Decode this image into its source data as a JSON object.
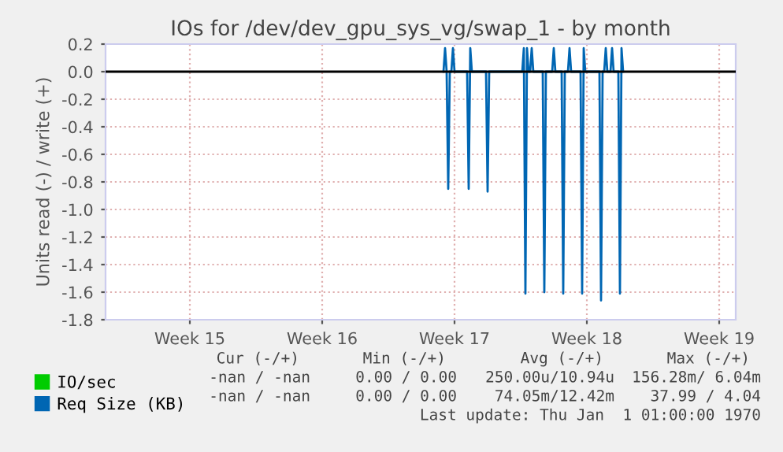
{
  "chart_data": {
    "type": "line",
    "title": "IOs for /dev/dev_gpu_sys_vg/swap_1 - by month",
    "ylabel": "Units read (-) / write (+)",
    "categories": [
      null,
      null,
      null,
      null,
      null,
      null,
      null,
      null,
      null,
      null,
      null,
      null,
      null,
      null,
      null,
      null,
      null,
      null,
      null,
      null,
      null,
      null,
      null,
      null,
      null,
      null,
      null,
      null,
      null,
      null,
      null,
      null,
      null,
      null,
      null,
      null,
      null,
      null,
      null,
      null,
      null,
      null,
      null,
      null,
      null,
      null,
      null,
      null,
      null,
      null,
      null,
      null,
      null,
      "Week 15",
      null,
      null,
      null,
      null,
      null,
      null,
      null,
      null,
      null,
      null,
      null,
      null,
      null,
      null,
      null,
      null,
      null,
      null,
      null,
      null,
      null,
      null,
      null,
      null,
      null,
      null,
      null,
      null,
      null,
      null,
      null,
      null,
      null,
      null,
      null,
      null,
      null,
      null,
      null,
      null,
      null,
      null,
      null,
      null,
      null,
      null,
      null,
      null,
      null,
      null,
      null,
      null,
      null,
      null,
      null,
      null,
      null,
      null,
      null,
      null,
      null,
      null,
      null,
      null,
      null,
      null,
      null,
      null,
      null,
      null,
      null,
      null,
      null,
      null,
      null,
      null,
      null,
      null,
      null,
      null,
      null,
      null,
      null,
      "Week 16",
      null,
      null,
      null,
      null,
      null,
      null,
      null,
      null,
      null,
      null,
      null,
      null,
      null,
      null,
      null,
      null,
      null,
      null,
      null,
      null,
      null,
      null,
      null,
      null,
      null,
      null,
      null,
      null,
      null,
      null,
      null,
      null,
      null,
      null,
      null,
      null,
      null,
      null,
      null,
      null,
      null,
      null,
      null,
      null,
      null,
      null,
      null,
      null,
      null,
      null,
      null,
      null,
      null,
      null,
      null,
      null,
      null,
      null,
      null,
      null,
      null,
      null,
      null,
      null,
      null,
      null,
      null,
      null,
      null,
      null,
      null,
      null,
      null,
      null,
      null,
      null,
      null,
      null,
      null,
      null,
      null,
      null,
      null,
      "Week 17",
      null,
      null,
      null,
      null,
      null,
      null,
      null,
      null,
      null,
      null,
      null,
      null,
      null,
      null,
      null,
      null,
      null,
      null,
      null,
      null,
      null,
      null,
      null,
      null,
      null,
      null,
      null,
      null,
      null,
      null,
      null,
      null,
      null,
      null,
      null,
      null,
      null,
      null,
      null,
      null,
      null,
      null,
      null,
      null,
      null,
      null,
      null,
      null,
      null,
      null,
      null,
      null,
      null,
      null,
      null,
      null,
      null,
      null,
      null,
      null,
      null,
      null,
      null,
      null,
      null,
      null,
      null,
      null,
      null,
      null,
      null,
      null,
      null,
      null,
      null,
      null,
      null,
      null,
      null,
      null,
      null,
      null,
      null,
      "Week 18",
      null,
      null,
      null,
      null,
      null,
      null,
      null,
      null,
      null,
      null,
      null,
      null,
      null,
      null,
      null,
      null,
      null,
      null,
      null,
      null,
      null,
      null,
      null,
      null,
      null,
      null,
      null,
      null,
      null,
      null,
      null,
      null,
      null,
      null,
      null,
      null,
      null,
      null,
      null,
      null,
      null,
      null,
      null,
      null,
      null,
      null,
      null,
      null,
      null,
      null,
      null,
      null,
      null,
      null,
      null,
      null,
      null,
      null,
      null,
      null,
      null,
      null,
      null,
      null,
      null,
      null,
      null,
      null,
      null,
      null,
      null,
      null,
      null,
      null,
      null,
      null,
      null,
      null,
      null,
      null,
      null,
      null,
      null,
      "Week 19",
      null,
      null,
      null,
      null,
      null,
      null,
      null,
      null,
      null,
      null
    ],
    "ylim": [
      -1.8,
      0.2
    ],
    "yticks": [
      0.2,
      {
        "value": 0,
        "label": "0.0"
      },
      -0.2,
      -0.4,
      -0.6,
      -0.8,
      {
        "value": -1,
        "label": "-1.0"
      },
      -1.2,
      -1.4,
      -1.6,
      -1.8
    ],
    "grid": true,
    "legend": "bottom left",
    "series": [
      {
        "name": "IO/sec",
        "color": "#00cc00",
        "values": [
          null,
          null,
          null,
          null,
          null,
          null,
          null,
          null,
          null,
          null,
          null,
          null,
          null,
          null,
          null,
          null,
          null,
          null,
          null,
          null,
          null,
          null,
          null,
          null,
          null,
          null,
          null,
          null,
          null,
          null,
          null,
          null,
          null,
          null,
          null,
          null,
          null,
          null,
          null,
          null,
          null,
          null,
          null,
          null,
          null,
          null,
          null,
          null,
          null,
          null,
          null,
          null,
          null,
          null,
          null,
          null,
          null,
          null,
          null,
          null,
          null,
          null,
          null,
          null,
          null,
          null,
          null,
          null,
          null,
          null,
          null,
          null,
          null,
          null,
          null,
          null,
          null,
          null,
          null,
          null,
          null,
          null,
          null,
          null,
          null,
          null,
          null,
          null,
          null,
          null,
          null,
          null,
          null,
          null,
          null,
          null,
          null,
          null,
          null,
          null,
          null,
          null,
          null,
          null,
          null,
          null,
          null,
          null,
          null,
          null,
          null,
          null,
          null,
          null,
          null,
          null,
          null,
          null,
          null,
          null,
          null,
          null,
          null,
          null,
          null,
          null,
          null,
          null,
          null,
          null,
          null,
          null,
          null,
          null,
          null,
          null,
          null,
          null,
          null,
          null,
          null,
          null,
          null,
          null,
          null,
          null,
          null,
          null,
          null,
          null,
          null,
          null,
          null,
          null,
          null,
          null,
          null,
          null,
          null,
          null,
          null,
          null,
          null,
          null,
          null,
          null,
          null,
          null,
          null,
          null,
          null,
          null,
          null,
          null,
          null,
          null,
          null,
          null,
          null,
          null,
          null,
          null,
          null,
          null,
          null,
          null,
          null,
          null,
          null,
          null,
          null,
          null,
          null,
          null,
          null,
          null,
          null,
          null,
          null,
          null,
          null,
          null,
          null,
          null,
          null,
          null,
          null,
          null,
          null,
          null,
          null,
          null,
          null,
          null,
          null,
          null,
          null,
          null,
          null,
          null,
          null,
          null,
          null,
          null,
          null,
          null,
          null,
          null,
          null,
          null,
          null,
          null,
          null,
          null,
          null,
          null,
          null,
          null,
          null,
          null,
          null,
          null,
          null,
          null,
          null,
          null,
          null,
          null,
          null,
          null,
          null,
          null,
          null,
          null,
          null,
          null,
          null,
          null,
          null,
          null,
          null,
          null,
          null,
          null,
          null,
          null,
          null,
          null,
          null,
          null,
          null,
          null,
          null,
          null,
          null,
          null,
          null,
          null,
          null,
          null,
          null,
          null,
          null,
          null,
          null,
          null,
          null,
          null,
          null,
          null,
          null,
          null,
          null,
          null,
          null,
          null,
          null,
          null,
          null,
          null,
          null,
          null,
          null,
          null,
          null,
          null,
          null,
          null,
          null,
          null,
          null,
          null,
          null,
          null,
          null,
          null,
          null,
          null,
          null,
          null,
          null,
          null,
          null,
          null,
          null,
          null,
          null,
          null,
          null,
          null,
          null,
          null,
          null,
          null,
          null,
          null,
          null,
          null,
          null,
          null,
          null,
          null,
          null,
          null,
          null,
          null,
          null,
          null,
          null,
          null,
          null,
          null,
          null,
          null,
          null,
          null,
          null,
          null,
          null,
          null,
          null,
          null,
          null,
          null,
          null,
          null,
          null,
          null,
          null,
          null,
          null,
          null,
          null,
          null,
          null,
          null,
          null,
          null,
          null,
          null,
          null,
          null,
          null,
          null,
          null,
          null,
          null,
          null,
          null,
          null,
          null,
          null,
          null,
          null,
          null,
          null,
          null,
          null,
          null,
          null
        ]
      },
      {
        "name": "Req Size (KB)",
        "color": "#0066b3",
        "values": [
          null,
          null,
          null,
          null,
          null,
          null,
          null,
          null,
          null,
          null,
          null,
          null,
          null,
          null,
          null,
          null,
          null,
          null,
          null,
          null,
          null,
          null,
          null,
          null,
          null,
          null,
          null,
          null,
          null,
          null,
          null,
          null,
          null,
          null,
          null,
          null,
          null,
          null,
          null,
          null,
          null,
          null,
          null,
          null,
          null,
          null,
          null,
          null,
          null,
          null,
          null,
          null,
          null,
          null,
          null,
          null,
          null,
          null,
          null,
          null,
          null,
          null,
          null,
          null,
          null,
          null,
          null,
          null,
          null,
          null,
          null,
          null,
          null,
          null,
          null,
          null,
          null,
          null,
          null,
          null,
          null,
          null,
          null,
          null,
          null,
          null,
          null,
          null,
          null,
          null,
          null,
          null,
          null,
          null,
          null,
          null,
          null,
          null,
          null,
          null,
          null,
          null,
          null,
          null,
          null,
          null,
          null,
          null,
          null,
          null,
          null,
          null,
          null,
          null,
          null,
          null,
          null,
          null,
          null,
          null,
          null,
          null,
          null,
          null,
          null,
          null,
          null,
          null,
          null,
          null,
          null,
          null,
          null,
          null,
          null,
          null,
          null,
          null,
          null,
          null,
          null,
          null,
          null,
          null,
          null,
          null,
          null,
          null,
          null,
          null,
          null,
          null,
          null,
          null,
          null,
          null,
          null,
          null,
          null,
          null,
          null,
          null,
          null,
          null,
          null,
          null,
          null,
          null,
          null,
          null,
          null,
          null,
          null,
          null,
          null,
          null,
          null,
          null,
          null,
          null,
          null,
          null,
          null,
          null,
          null,
          null,
          null,
          null,
          null,
          null,
          null,
          null,
          null,
          null,
          null,
          null,
          null,
          null,
          null,
          null,
          null,
          null,
          null,
          null,
          null,
          null,
          null,
          null,
          null,
          null,
          null,
          null,
          null,
          null,
          0,
          0.17,
          0,
          -0.85,
          0,
          0,
          0.17,
          0,
          0,
          0,
          0,
          0,
          0,
          0,
          0,
          0,
          -0.85,
          0.17,
          0,
          0,
          0,
          0,
          0,
          0,
          0,
          0,
          0,
          0,
          -0.87,
          0,
          0,
          0,
          0,
          0,
          0,
          0,
          0,
          0,
          0,
          0,
          0,
          0,
          0,
          0,
          0,
          0,
          0,
          0,
          0,
          0,
          0,
          0.17,
          -1.61,
          0.17,
          0,
          0,
          0.17,
          0,
          0,
          0,
          0,
          0,
          0,
          0,
          -1.6,
          0,
          0,
          0,
          0,
          0,
          0.17,
          0,
          0,
          0,
          0,
          0,
          -1.61,
          0,
          0,
          0,
          0.17,
          0,
          0,
          0,
          0,
          0,
          0,
          0,
          -1.61,
          0.17,
          0,
          0,
          0,
          0,
          0,
          0,
          0,
          0,
          0,
          0,
          -1.66,
          0,
          0,
          0.17,
          0,
          0,
          0,
          0.17,
          0,
          0,
          0,
          0,
          -1.61,
          0.17,
          0,
          null,
          null,
          null,
          null,
          null,
          null,
          null,
          null,
          null,
          null,
          null,
          null,
          null,
          null,
          null,
          null,
          null,
          null,
          null,
          null,
          null,
          null,
          null,
          null,
          null,
          null,
          null,
          null,
          null,
          null,
          null,
          null,
          null,
          null,
          null,
          null,
          null,
          null,
          null,
          null,
          null,
          null,
          null,
          null,
          null,
          null,
          null,
          null,
          null,
          null,
          null,
          null,
          null,
          null,
          null,
          null,
          null,
          null,
          null,
          null,
          null,
          null,
          null,
          null,
          null,
          null,
          null,
          null,
          null,
          null,
          null
        ]
      }
    ],
    "ref_lines": [
      {
        "axis": "y",
        "value": 0,
        "color": "#000000"
      }
    ],
    "annotations": [
      "Cur (-/+)",
      "Min (-/+)",
      "Avg (-/+)",
      "Max (-/+)",
      "-nan / -nan",
      "0.00 / 0.00",
      "250.00u/10.94u",
      "156.28m/ 6.04m",
      "-nan / -nan",
      "0.00 / 0.00",
      "74.05m/12.42m",
      "37.99 / 4.04",
      "Last update: Thu Jan  1 01:00:00 1970"
    ]
  }
}
